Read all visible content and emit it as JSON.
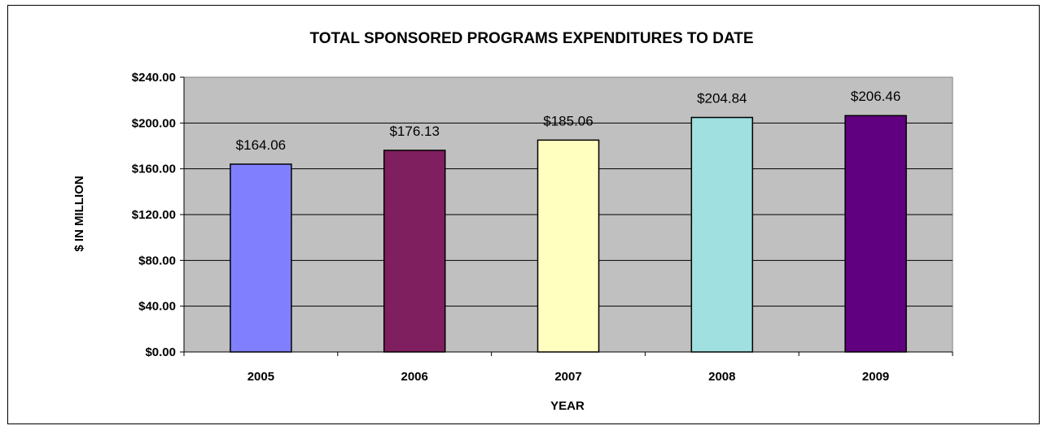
{
  "chart_data": {
    "type": "bar",
    "title": "TOTAL SPONSORED PROGRAMS EXPENDITURES TO DATE",
    "xlabel": "YEAR",
    "ylabel": "$ IN MILLION",
    "categories": [
      "2005",
      "2006",
      "2007",
      "2008",
      "2009"
    ],
    "values": [
      164.06,
      176.13,
      185.06,
      204.84,
      206.46
    ],
    "data_labels": [
      "$164.06",
      "$176.13",
      "$185.06",
      "$204.84",
      "$206.46"
    ],
    "ylim": [
      0,
      240
    ],
    "yticks": [
      0,
      40,
      80,
      120,
      160,
      200,
      240
    ],
    "ytick_labels": [
      "$0.00",
      "$40.00",
      "$80.00",
      "$120.00",
      "$160.00",
      "$200.00",
      "$240.00"
    ],
    "bar_colors": [
      "#8080FF",
      "#7F1F5F",
      "#FFFFC0",
      "#A0E0E0",
      "#600080"
    ],
    "plot_background": "#C0C0C0",
    "grid": true,
    "legend": "none"
  }
}
